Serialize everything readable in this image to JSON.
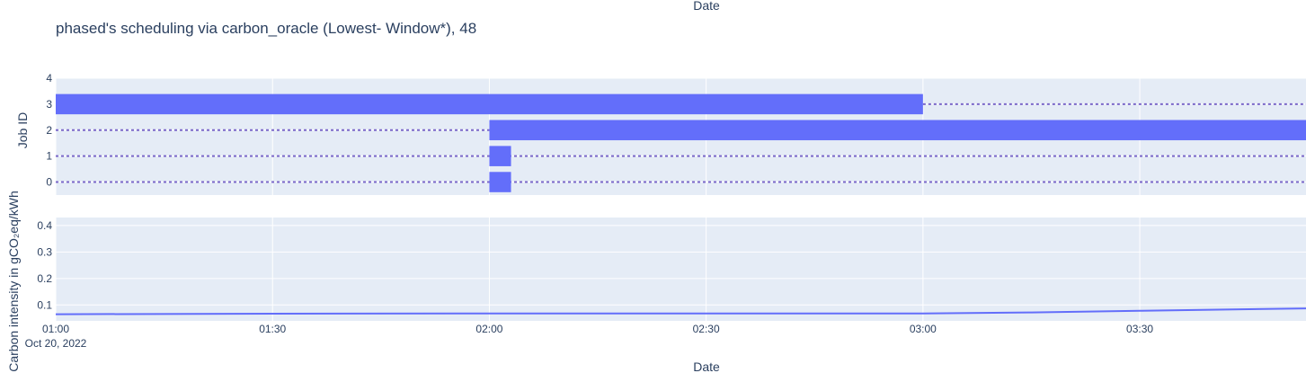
{
  "chart_data": [
    {
      "type": "bar",
      "orientation": "horizontal-timeline",
      "title": "phased's scheduling via carbon_oracle (Lowest- Window*), 48",
      "xlabel": "Date",
      "ylabel": "Job ID",
      "x_ticks": [
        "01:00",
        "01:30",
        "02:00",
        "02:30",
        "03:00",
        "03:30"
      ],
      "x_tick_sublabel": "Oct 20, 2022",
      "x_range": [
        "2022-10-20 01:00",
        "2022-10-20 03:53"
      ],
      "y_ticks": [
        "0",
        "1",
        "2",
        "3",
        "4"
      ],
      "ylim": [
        -0.5,
        4
      ],
      "grid": true,
      "bars": [
        {
          "job": 3,
          "start": "2022-10-20 01:00",
          "end": "2022-10-20 03:00"
        },
        {
          "job": 2,
          "start": "2022-10-20 02:00",
          "end": "2022-10-20 03:53"
        },
        {
          "job": 1,
          "start": "2022-10-20 02:00",
          "end": "2022-10-20 02:03"
        },
        {
          "job": 0,
          "start": "2022-10-20 02:00",
          "end": "2022-10-20 02:03"
        }
      ],
      "dotted_lines": [
        {
          "job": 3,
          "start": "2022-10-20 03:00",
          "end": "2022-10-20 03:53"
        },
        {
          "job": 2,
          "start": "2022-10-20 01:00",
          "end": "2022-10-20 02:00"
        },
        {
          "job": 1,
          "start": "2022-10-20 01:00",
          "end": "2022-10-20 03:53"
        },
        {
          "job": 0,
          "start": "2022-10-20 01:00",
          "end": "2022-10-20 03:53"
        }
      ],
      "colors": {
        "bar": "#636efa",
        "dotted": "#7b68c9",
        "plot_bg": "#e5ecf6",
        "grid": "#ffffff",
        "text": "#2a3f5f"
      }
    },
    {
      "type": "line",
      "xlabel": "Date",
      "ylabel": "Carbon intensity in gCO₂eq/kWh",
      "x_ticks": [
        "01:00",
        "01:30",
        "02:00",
        "02:30",
        "03:00",
        "03:30"
      ],
      "x_tick_sublabel": "Oct 20, 2022",
      "y_ticks": [
        "0.1",
        "0.2",
        "0.3",
        "0.4"
      ],
      "ylim": [
        0.04,
        0.43
      ],
      "grid": true,
      "series": [
        {
          "x": [
            "2022-10-20 01:00",
            "2022-10-20 01:30",
            "2022-10-20 02:00",
            "2022-10-20 02:30",
            "2022-10-20 03:00",
            "2022-10-20 03:15",
            "2022-10-20 03:30",
            "2022-10-20 03:53"
          ],
          "y": [
            0.065,
            0.067,
            0.068,
            0.068,
            0.068,
            0.072,
            0.078,
            0.087
          ]
        }
      ],
      "colors": {
        "line": "#636efa"
      }
    }
  ]
}
